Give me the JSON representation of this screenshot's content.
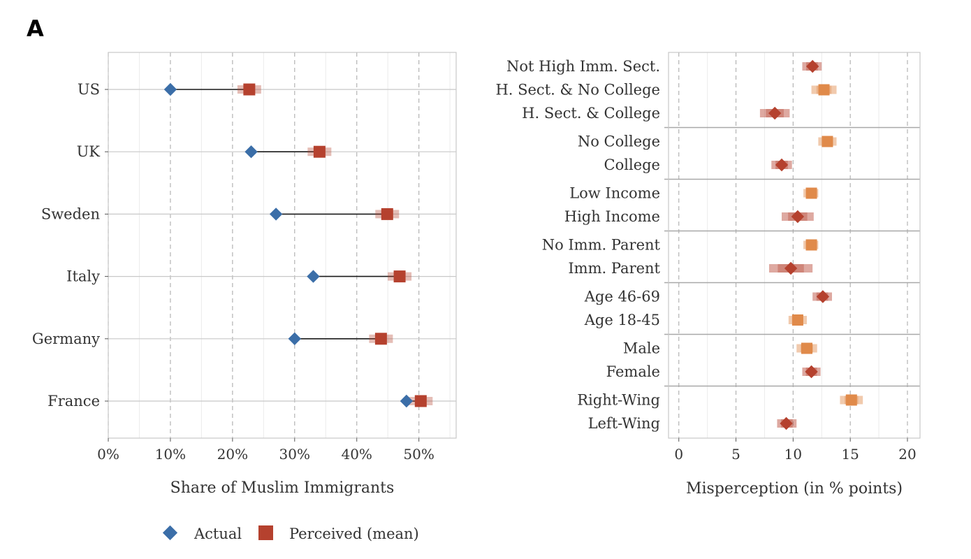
{
  "panel_tag": "A",
  "chart_data": [
    {
      "type": "dumbbell",
      "xlabel": "Share of Muslim Immigrants",
      "ylabel": "",
      "xlim": [
        0,
        56
      ],
      "x_ticks": [
        0,
        10,
        20,
        30,
        40,
        50
      ],
      "x_tick_labels": [
        "0%",
        "10%",
        "20%",
        "30%",
        "40%",
        "50%"
      ],
      "grid": true,
      "categories": [
        "US",
        "UK",
        "Sweden",
        "Italy",
        "Germany",
        "France"
      ],
      "series": [
        {
          "name": "Actual",
          "marker": "diamond",
          "color": "#3b6ea8",
          "values": [
            10,
            23,
            27,
            33,
            30,
            48
          ]
        },
        {
          "name": "Perceived (mean)",
          "marker": "square",
          "color": "#b5412e",
          "values": [
            22.7,
            34.0,
            44.9,
            46.9,
            43.9,
            50.3
          ]
        }
      ],
      "legend": {
        "position": "bottom",
        "items": [
          "Actual",
          "Perceived (mean)"
        ]
      }
    },
    {
      "type": "dot-errorbar",
      "xlabel": "Misperception (in % points)",
      "ylabel": "",
      "xlim": [
        -0.9,
        21.1
      ],
      "x_ticks": [
        0,
        5,
        10,
        15,
        20
      ],
      "x_tick_labels": [
        "0",
        "5",
        "10",
        "15",
        "20"
      ],
      "grid": true,
      "groups": [
        {
          "rows": [
            {
              "label": "Not High Imm. Sect.",
              "value": 11.7,
              "low": 10.8,
              "high": 12.5,
              "marker": "diamond",
              "color": "#b5412e"
            },
            {
              "label": "H. Sect. & No College",
              "value": 12.7,
              "low": 11.6,
              "high": 13.8,
              "marker": "square",
              "color": "#e08a4a"
            },
            {
              "label": "H. Sect. & College",
              "value": 8.4,
              "low": 7.1,
              "high": 9.7,
              "marker": "diamond",
              "color": "#b5412e"
            }
          ]
        },
        {
          "rows": [
            {
              "label": "No College",
              "value": 13.0,
              "low": 12.2,
              "high": 13.8,
              "marker": "square",
              "color": "#e08a4a"
            },
            {
              "label": "College",
              "value": 9.0,
              "low": 8.1,
              "high": 9.9,
              "marker": "diamond",
              "color": "#b5412e"
            }
          ]
        },
        {
          "rows": [
            {
              "label": "Low Income",
              "value": 11.6,
              "low": 10.9,
              "high": 12.2,
              "marker": "square",
              "color": "#e08a4a"
            },
            {
              "label": "High Income",
              "value": 10.4,
              "low": 9.0,
              "high": 11.8,
              "marker": "diamond",
              "color": "#b5412e"
            }
          ]
        },
        {
          "rows": [
            {
              "label": "No Imm. Parent",
              "value": 11.6,
              "low": 10.9,
              "high": 12.2,
              "marker": "square",
              "color": "#e08a4a"
            },
            {
              "label": "Imm. Parent",
              "value": 9.8,
              "low": 7.9,
              "high": 11.7,
              "marker": "diamond",
              "color": "#b5412e"
            }
          ]
        },
        {
          "rows": [
            {
              "label": "Age 46-69",
              "value": 12.6,
              "low": 11.7,
              "high": 13.4,
              "marker": "diamond",
              "color": "#b5412e"
            },
            {
              "label": "Age 18-45",
              "value": 10.4,
              "low": 9.6,
              "high": 11.2,
              "marker": "square",
              "color": "#e08a4a"
            }
          ]
        },
        {
          "rows": [
            {
              "label": "Male",
              "value": 11.2,
              "low": 10.3,
              "high": 12.1,
              "marker": "square",
              "color": "#e08a4a"
            },
            {
              "label": "Female",
              "value": 11.6,
              "low": 10.8,
              "high": 12.4,
              "marker": "diamond",
              "color": "#b5412e"
            }
          ]
        },
        {
          "rows": [
            {
              "label": "Right-Wing",
              "value": 15.1,
              "low": 14.1,
              "high": 16.1,
              "marker": "square",
              "color": "#e08a4a"
            },
            {
              "label": "Left-Wing",
              "value": 9.4,
              "low": 8.6,
              "high": 10.3,
              "marker": "diamond",
              "color": "#b5412e"
            }
          ]
        }
      ]
    }
  ]
}
